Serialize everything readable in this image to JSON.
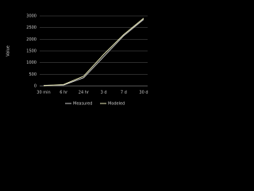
{
  "chart_data": {
    "type": "line",
    "y_label": "Value",
    "categories": [
      "30 min",
      "6 hr",
      "24 hr",
      "3 d",
      "7 d",
      "30 d"
    ],
    "series": [
      {
        "name": "Measured",
        "color": "#c8c8c8",
        "values": [
          20,
          40,
          350,
          1250,
          2150,
          2850
        ]
      },
      {
        "name": "Modeled",
        "color": "#e6e6b4",
        "values": [
          10,
          60,
          420,
          1350,
          2200,
          2900
        ]
      }
    ],
    "ylim": [
      0,
      3000
    ],
    "yticks": [
      0,
      500,
      1000,
      1500,
      2000,
      2500,
      3000
    ],
    "grid": true
  }
}
